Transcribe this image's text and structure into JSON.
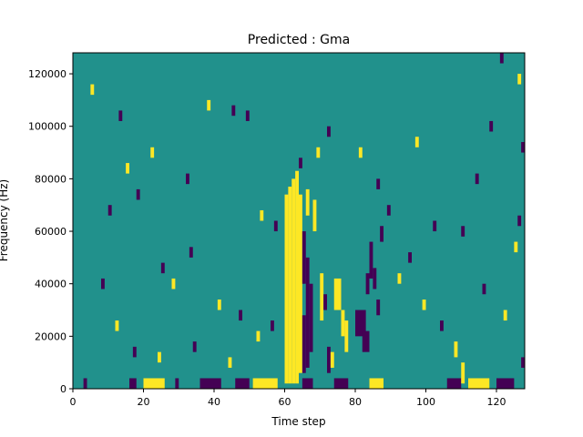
{
  "chart_data": {
    "type": "heatmap",
    "title": "Predicted : Gma",
    "xlabel": "Time step",
    "ylabel": "Frequency (Hz)",
    "xlim": [
      0,
      128
    ],
    "ylim": [
      0,
      128000
    ],
    "x_ticks": [
      0,
      20,
      40,
      60,
      80,
      100,
      120
    ],
    "x_tick_labels": [
      "0",
      "20",
      "40",
      "60",
      "80",
      "100",
      "120"
    ],
    "y_ticks": [
      0,
      20000,
      40000,
      60000,
      80000,
      100000,
      120000
    ],
    "y_tick_labels": [
      "0",
      "20000",
      "40000",
      "60000",
      "80000",
      "100000",
      "120000"
    ],
    "grid": false,
    "legend": "none",
    "colormap": "viridis",
    "colors": {
      "background": "#21918c",
      "high": "#fde725",
      "low": "#440154"
    },
    "cells": [
      {
        "x": 0,
        "x2": 2,
        "y": 120000,
        "y2": 128000,
        "v": 0
      },
      {
        "x": 20,
        "x2": 26,
        "y": 0,
        "y2": 4000,
        "v": 1
      },
      {
        "x": 36,
        "x2": 42,
        "y": 0,
        "y2": 4000,
        "v": -1
      },
      {
        "x": 46,
        "x2": 50,
        "y": 0,
        "y2": 4000,
        "v": -1
      },
      {
        "x": 51,
        "x2": 58,
        "y": 0,
        "y2": 4000,
        "v": 1
      },
      {
        "x": 65,
        "x2": 68,
        "y": 0,
        "y2": 4000,
        "v": -1
      },
      {
        "x": 74,
        "x2": 78,
        "y": 0,
        "y2": 4000,
        "v": -1
      },
      {
        "x": 84,
        "x2": 88,
        "y": 0,
        "y2": 4000,
        "v": 1
      },
      {
        "x": 106,
        "x2": 110,
        "y": 0,
        "y2": 4000,
        "v": -1
      },
      {
        "x": 112,
        "x2": 118,
        "y": 0,
        "y2": 4000,
        "v": 1
      },
      {
        "x": 120,
        "x2": 125,
        "y": 0,
        "y2": 4000,
        "v": -1
      },
      {
        "x": 16,
        "x2": 18,
        "y": 0,
        "y2": 4000,
        "v": -1
      },
      {
        "x": 3,
        "x2": 4,
        "y": 0,
        "y2": 4000,
        "v": -1
      },
      {
        "x": 29,
        "x2": 30,
        "y": 0,
        "y2": 4000,
        "v": -1
      },
      {
        "x": 60,
        "x2": 61,
        "y": 2000,
        "y2": 74000,
        "v": 1
      },
      {
        "x": 61,
        "x2": 62,
        "y": 2000,
        "y2": 77000,
        "v": 1
      },
      {
        "x": 62,
        "x2": 63,
        "y": 2000,
        "y2": 80000,
        "v": 1
      },
      {
        "x": 63,
        "x2": 64,
        "y": 2000,
        "y2": 83000,
        "v": 1
      },
      {
        "x": 64,
        "x2": 65,
        "y": 6000,
        "y2": 74000,
        "v": 1
      },
      {
        "x": 65,
        "x2": 66,
        "y": 6000,
        "y2": 28000,
        "v": -1
      },
      {
        "x": 65,
        "x2": 66,
        "y": 40000,
        "y2": 60000,
        "v": -1
      },
      {
        "x": 66,
        "x2": 67,
        "y": 8000,
        "y2": 50000,
        "v": -1
      },
      {
        "x": 67,
        "x2": 68,
        "y": 14000,
        "y2": 40000,
        "v": -1
      },
      {
        "x": 66,
        "x2": 67,
        "y": 66000,
        "y2": 76000,
        "v": 1
      },
      {
        "x": 68,
        "x2": 69,
        "y": 60000,
        "y2": 72000,
        "v": 1
      },
      {
        "x": 70,
        "x2": 71,
        "y": 26000,
        "y2": 44000,
        "v": 1
      },
      {
        "x": 71,
        "x2": 72,
        "y": 30000,
        "y2": 36000,
        "v": -1
      },
      {
        "x": 72,
        "x2": 73,
        "y": 6000,
        "y2": 16000,
        "v": -1
      },
      {
        "x": 73,
        "x2": 74,
        "y": 8000,
        "y2": 14000,
        "v": 1
      },
      {
        "x": 74,
        "x2": 76,
        "y": 30000,
        "y2": 42000,
        "v": 1
      },
      {
        "x": 76,
        "x2": 77,
        "y": 20000,
        "y2": 30000,
        "v": 1
      },
      {
        "x": 77,
        "x2": 78,
        "y": 14000,
        "y2": 26000,
        "v": 1
      },
      {
        "x": 80,
        "x2": 83,
        "y": 20000,
        "y2": 30000,
        "v": -1
      },
      {
        "x": 82,
        "x2": 84,
        "y": 14000,
        "y2": 22000,
        "v": -1
      },
      {
        "x": 83,
        "x2": 84,
        "y": 36000,
        "y2": 44000,
        "v": -1
      },
      {
        "x": 84,
        "x2": 85,
        "y": 42000,
        "y2": 56000,
        "v": -1
      },
      {
        "x": 85,
        "x2": 86,
        "y": 38000,
        "y2": 46000,
        "v": -1
      },
      {
        "x": 86,
        "x2": 87,
        "y": 28000,
        "y2": 34000,
        "v": -1
      },
      {
        "x": 87,
        "x2": 88,
        "y": 56000,
        "y2": 62000,
        "v": -1
      },
      {
        "x": 64,
        "x2": 65,
        "y": 84000,
        "y2": 88000,
        "v": -1
      },
      {
        "x": 69,
        "x2": 70,
        "y": 88000,
        "y2": 92000,
        "v": 1
      },
      {
        "x": 72,
        "x2": 73,
        "y": 96000,
        "y2": 100000,
        "v": -1
      },
      {
        "x": 81,
        "x2": 82,
        "y": 88000,
        "y2": 92000,
        "v": 1
      },
      {
        "x": 86,
        "x2": 87,
        "y": 76000,
        "y2": 80000,
        "v": -1
      },
      {
        "x": 89,
        "x2": 90,
        "y": 66000,
        "y2": 70000,
        "v": -1
      },
      {
        "x": 97,
        "x2": 98,
        "y": 92000,
        "y2": 96000,
        "v": 1
      },
      {
        "x": 102,
        "x2": 103,
        "y": 60000,
        "y2": 64000,
        "v": -1
      },
      {
        "x": 110,
        "x2": 111,
        "y": 58000,
        "y2": 62000,
        "v": -1
      },
      {
        "x": 114,
        "x2": 115,
        "y": 78000,
        "y2": 82000,
        "v": -1
      },
      {
        "x": 118,
        "x2": 119,
        "y": 98000,
        "y2": 102000,
        "v": -1
      },
      {
        "x": 121,
        "x2": 122,
        "y": 124000,
        "y2": 128000,
        "v": -1
      },
      {
        "x": 126,
        "x2": 127,
        "y": 116000,
        "y2": 120000,
        "v": 1
      },
      {
        "x": 127,
        "x2": 128,
        "y": 90000,
        "y2": 94000,
        "v": -1
      },
      {
        "x": 10,
        "x2": 11,
        "y": 66000,
        "y2": 70000,
        "v": -1
      },
      {
        "x": 15,
        "x2": 16,
        "y": 82000,
        "y2": 86000,
        "v": 1
      },
      {
        "x": 22,
        "x2": 23,
        "y": 88000,
        "y2": 92000,
        "v": 1
      },
      {
        "x": 32,
        "x2": 33,
        "y": 78000,
        "y2": 82000,
        "v": -1
      },
      {
        "x": 38,
        "x2": 39,
        "y": 106000,
        "y2": 110000,
        "v": 1
      },
      {
        "x": 45,
        "x2": 46,
        "y": 104000,
        "y2": 108000,
        "v": -1
      },
      {
        "x": 49,
        "x2": 50,
        "y": 102000,
        "y2": 106000,
        "v": -1
      },
      {
        "x": 53,
        "x2": 54,
        "y": 64000,
        "y2": 68000,
        "v": 1
      },
      {
        "x": 57,
        "x2": 58,
        "y": 60000,
        "y2": 64000,
        "v": -1
      },
      {
        "x": 5,
        "x2": 6,
        "y": 112000,
        "y2": 116000,
        "v": 1
      },
      {
        "x": 13,
        "x2": 14,
        "y": 102000,
        "y2": 106000,
        "v": -1
      },
      {
        "x": 18,
        "x2": 19,
        "y": 72000,
        "y2": 76000,
        "v": -1
      },
      {
        "x": 25,
        "x2": 26,
        "y": 44000,
        "y2": 48000,
        "v": -1
      },
      {
        "x": 28,
        "x2": 29,
        "y": 38000,
        "y2": 42000,
        "v": 1
      },
      {
        "x": 33,
        "x2": 34,
        "y": 50000,
        "y2": 54000,
        "v": -1
      },
      {
        "x": 41,
        "x2": 42,
        "y": 30000,
        "y2": 34000,
        "v": 1
      },
      {
        "x": 47,
        "x2": 48,
        "y": 26000,
        "y2": 30000,
        "v": -1
      },
      {
        "x": 52,
        "x2": 53,
        "y": 18000,
        "y2": 22000,
        "v": 1
      },
      {
        "x": 56,
        "x2": 57,
        "y": 22000,
        "y2": 26000,
        "v": -1
      },
      {
        "x": 8,
        "x2": 9,
        "y": 38000,
        "y2": 42000,
        "v": -1
      },
      {
        "x": 12,
        "x2": 13,
        "y": 22000,
        "y2": 26000,
        "v": 1
      },
      {
        "x": 17,
        "x2": 18,
        "y": 12000,
        "y2": 16000,
        "v": -1
      },
      {
        "x": 24,
        "x2": 25,
        "y": 10000,
        "y2": 14000,
        "v": 1
      },
      {
        "x": 34,
        "x2": 35,
        "y": 14000,
        "y2": 18000,
        "v": -1
      },
      {
        "x": 44,
        "x2": 45,
        "y": 8000,
        "y2": 12000,
        "v": 1
      },
      {
        "x": 92,
        "x2": 93,
        "y": 40000,
        "y2": 44000,
        "v": 1
      },
      {
        "x": 95,
        "x2": 96,
        "y": 48000,
        "y2": 52000,
        "v": -1
      },
      {
        "x": 99,
        "x2": 100,
        "y": 30000,
        "y2": 34000,
        "v": 1
      },
      {
        "x": 104,
        "x2": 105,
        "y": 22000,
        "y2": 26000,
        "v": -1
      },
      {
        "x": 108,
        "x2": 109,
        "y": 12000,
        "y2": 18000,
        "v": 1
      },
      {
        "x": 110,
        "x2": 111,
        "y": 2000,
        "y2": 10000,
        "v": 1
      },
      {
        "x": 116,
        "x2": 117,
        "y": 36000,
        "y2": 40000,
        "v": -1
      },
      {
        "x": 122,
        "x2": 123,
        "y": 26000,
        "y2": 30000,
        "v": 1
      },
      {
        "x": 125,
        "x2": 126,
        "y": 52000,
        "y2": 56000,
        "v": 1
      },
      {
        "x": 126,
        "x2": 127,
        "y": 62000,
        "y2": 66000,
        "v": -1
      },
      {
        "x": 127,
        "x2": 128,
        "y": 8000,
        "y2": 12000,
        "v": -1
      }
    ]
  }
}
